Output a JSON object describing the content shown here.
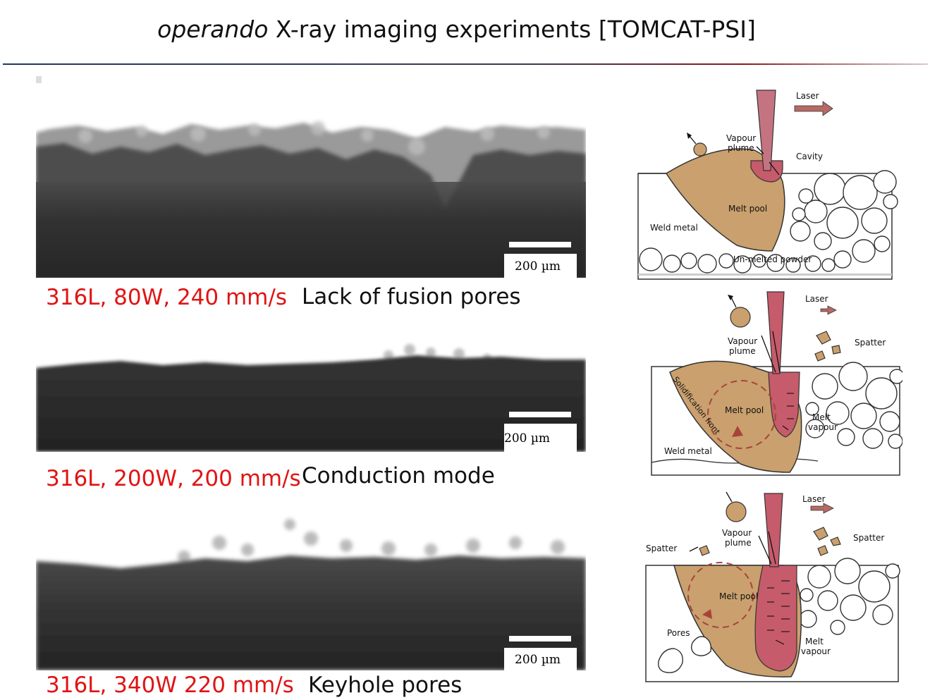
{
  "title": {
    "italic": "operando",
    "rest": " X-ray imaging experiments [TOMCAT-PSI]"
  },
  "colors": {
    "param_red": "#e01414",
    "melt_pool": "#c9a06e",
    "laser": "#c65b6b",
    "arrow": "#b66a63",
    "divider_blue": "#1f3864",
    "divider_red": "#8b1a1a"
  },
  "experiments": [
    {
      "params": "316L, 80W, 240 mm/s",
      "mode": "Lack of fusion pores",
      "scale_label": "200 µm"
    },
    {
      "params": "316L, 200W, 200 mm/s",
      "mode": "Conduction mode",
      "scale_label": "200 µm"
    },
    {
      "params": "316L, 340W 220 mm/s",
      "mode": "Keyhole pores",
      "scale_label": "200 µm"
    }
  ],
  "schematics": [
    {
      "laser": "Laser",
      "vapour": "Vapour\nplume",
      "cavity": "Cavity",
      "melt_pool": "Melt pool",
      "weld_metal": "Weld metal",
      "powder": "Un-melted powder"
    },
    {
      "laser": "Laser",
      "vapour": "Vapour\nplume",
      "spatter": "Spatter",
      "solidification": "Solidification front",
      "melt_pool": "Melt pool",
      "melt_vapour": "Melt\nvapour",
      "weld_metal": "Weld metal"
    },
    {
      "laser": "Laser",
      "vapour": "Vapour\nplume",
      "spatter_left": "Spatter",
      "spatter_right": "Spatter",
      "melt_pool": "Melt pool",
      "pores": "Pores",
      "melt_vapour": "Melt\nvapour"
    }
  ]
}
